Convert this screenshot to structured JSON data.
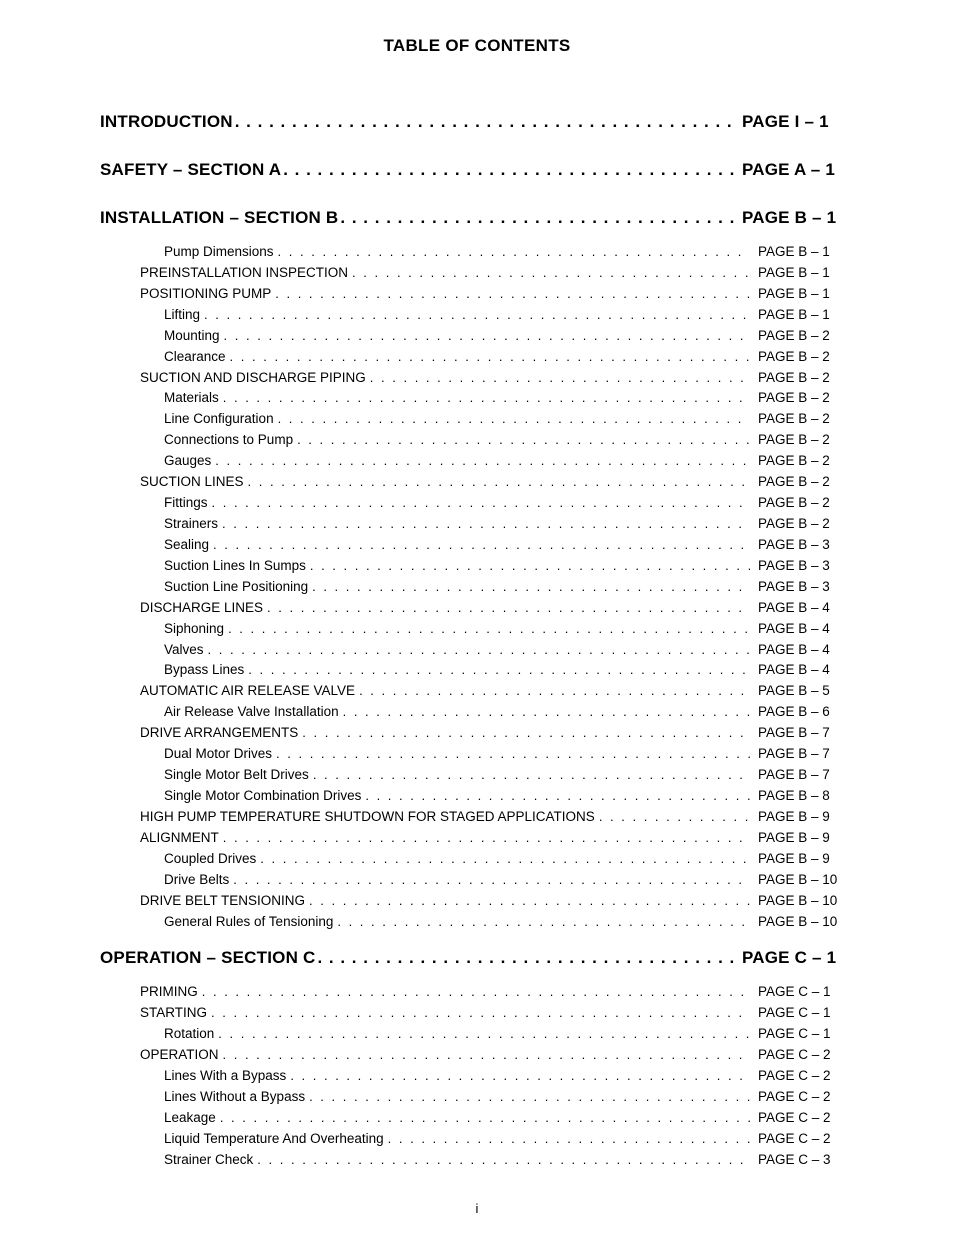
{
  "title": "TABLE OF CONTENTS",
  "leader_dots": ". . . . . . . . . . . . . . . . . . . . . . . . . . . . . . . . . . . . . . . . . . . . . . . . . . . . . . . . . . . . . . . . . . . . . . . . . . . . . . . . . . . . . . . . . . . . . . . . . . . . . . . . . . . . . . . . . . . . . . . . . . . . . . . . . . . . . . . . . . . . . . . . . . . . . . . . . . . . . . . . . . . . . . . . . . .",
  "page_number": "i",
  "typography": {
    "title_fontsize": 17,
    "section_fontsize": 17,
    "entry_fontsize": 13.5,
    "font_family": "Arial, Helvetica, sans-serif",
    "text_color": "#000000",
    "background_color": "#ffffff"
  },
  "sections": [
    {
      "label": "INTRODUCTION",
      "page": "PAGE I – 1",
      "entries": []
    },
    {
      "label": "SAFETY – SECTION A",
      "page": "PAGE A – 1",
      "entries": []
    },
    {
      "label": "INSTALLATION – SECTION B",
      "page": "PAGE B – 1",
      "entries": [
        {
          "label": "Pump Dimensions",
          "page": "PAGE B – 1",
          "indent": 2
        },
        {
          "label": "PREINSTALLATION INSPECTION",
          "page": "PAGE B – 1",
          "indent": 1
        },
        {
          "label": "POSITIONING PUMP",
          "page": "PAGE B – 1",
          "indent": 1
        },
        {
          "label": "Lifting",
          "page": "PAGE B – 1",
          "indent": 2
        },
        {
          "label": "Mounting",
          "page": "PAGE B – 2",
          "indent": 2
        },
        {
          "label": "Clearance",
          "page": "PAGE B – 2",
          "indent": 2
        },
        {
          "label": "SUCTION AND DISCHARGE PIPING",
          "page": "PAGE B – 2",
          "indent": 1
        },
        {
          "label": "Materials",
          "page": "PAGE B – 2",
          "indent": 2
        },
        {
          "label": "Line Configuration",
          "page": "PAGE B – 2",
          "indent": 2
        },
        {
          "label": "Connections to Pump",
          "page": "PAGE B – 2",
          "indent": 2
        },
        {
          "label": "Gauges",
          "page": "PAGE B – 2",
          "indent": 2
        },
        {
          "label": "SUCTION LINES",
          "page": "PAGE B – 2",
          "indent": 1
        },
        {
          "label": "Fittings",
          "page": "PAGE B – 2",
          "indent": 2
        },
        {
          "label": "Strainers",
          "page": "PAGE B – 2",
          "indent": 2
        },
        {
          "label": "Sealing",
          "page": "PAGE B – 3",
          "indent": 2
        },
        {
          "label": "Suction Lines In Sumps",
          "page": "PAGE B – 3",
          "indent": 2
        },
        {
          "label": "Suction Line Positioning",
          "page": "PAGE B – 3",
          "indent": 2
        },
        {
          "label": "DISCHARGE LINES",
          "page": "PAGE B – 4",
          "indent": 1
        },
        {
          "label": "Siphoning",
          "page": "PAGE B – 4",
          "indent": 2
        },
        {
          "label": "Valves",
          "page": "PAGE B – 4",
          "indent": 2
        },
        {
          "label": "Bypass Lines",
          "page": "PAGE B – 4",
          "indent": 2
        },
        {
          "label": "AUTOMATIC AIR RELEASE VALVE",
          "page": "PAGE B – 5",
          "indent": 1
        },
        {
          "label": "Air Release Valve Installation",
          "page": "PAGE B – 6",
          "indent": 2
        },
        {
          "label": "DRIVE ARRANGEMENTS",
          "page": "PAGE B – 7",
          "indent": 1
        },
        {
          "label": "Dual Motor Drives",
          "page": "PAGE B – 7",
          "indent": 2
        },
        {
          "label": "Single Motor Belt Drives",
          "page": "PAGE B – 7",
          "indent": 2
        },
        {
          "label": "Single Motor Combination Drives",
          "page": "PAGE B – 8",
          "indent": 2
        },
        {
          "label": "HIGH PUMP TEMPERATURE SHUTDOWN FOR STAGED APPLICATIONS",
          "page": "PAGE B – 9",
          "indent": 1
        },
        {
          "label": "ALIGNMENT",
          "page": "PAGE B – 9",
          "indent": 1
        },
        {
          "label": "Coupled Drives",
          "page": "PAGE B – 9",
          "indent": 2
        },
        {
          "label": "Drive Belts",
          "page": "PAGE B – 10",
          "indent": 2
        },
        {
          "label": "DRIVE BELT TENSIONING",
          "page": "PAGE B – 10",
          "indent": 1
        },
        {
          "label": "General Rules of Tensioning",
          "page": "PAGE B – 10",
          "indent": 2
        }
      ]
    },
    {
      "label": "OPERATION – SECTION C",
      "page": "PAGE C – 1",
      "entries": [
        {
          "label": "PRIMING",
          "page": "PAGE C – 1",
          "indent": 1
        },
        {
          "label": "STARTING",
          "page": "PAGE C – 1",
          "indent": 1
        },
        {
          "label": "Rotation",
          "page": "PAGE C – 1",
          "indent": 2
        },
        {
          "label": "OPERATION",
          "page": "PAGE C – 2",
          "indent": 1
        },
        {
          "label": "Lines With a Bypass",
          "page": "PAGE C – 2",
          "indent": 2
        },
        {
          "label": "Lines Without a Bypass",
          "page": "PAGE C – 2",
          "indent": 2
        },
        {
          "label": "Leakage",
          "page": "PAGE C – 2",
          "indent": 2
        },
        {
          "label": "Liquid Temperature And Overheating",
          "page": "PAGE C – 2",
          "indent": 2
        },
        {
          "label": "Strainer Check",
          "page": "PAGE C – 3",
          "indent": 2
        }
      ]
    }
  ]
}
